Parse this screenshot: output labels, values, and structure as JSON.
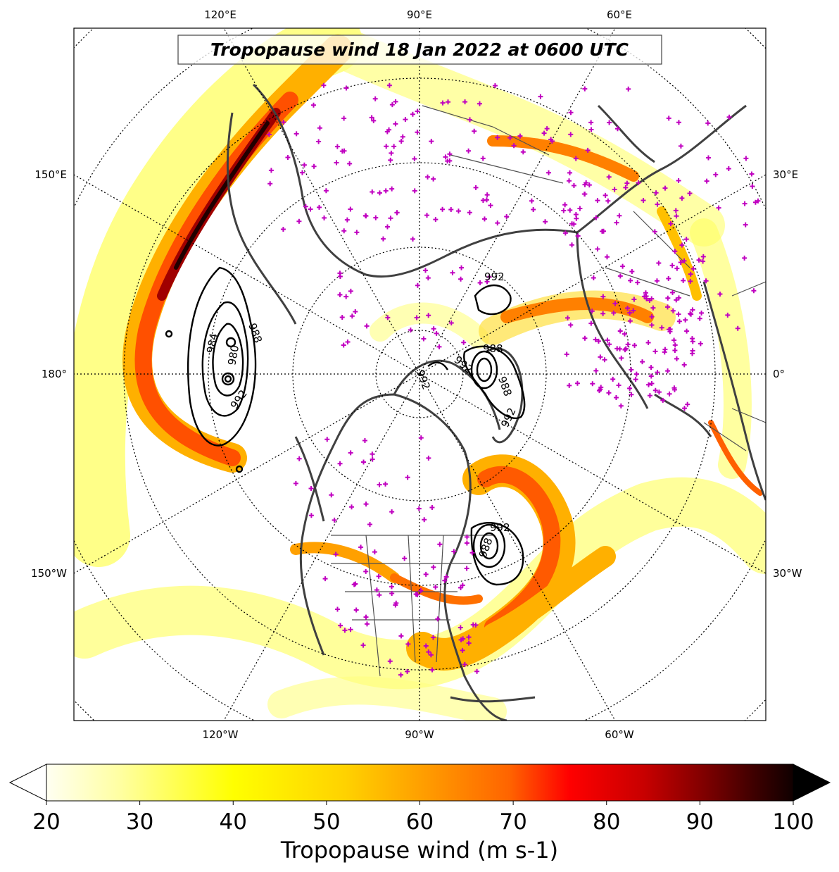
{
  "title": "Tropopause wind 18 Jan 2022 at 0600 UTC",
  "colorbar": {
    "label": "Tropopause wind (m s-1)",
    "ticks": [
      "20",
      "30",
      "40",
      "50",
      "60",
      "70",
      "80",
      "90",
      "100"
    ],
    "min": 20,
    "max": 100,
    "extend": "both",
    "colors": [
      "#fffff2",
      "#ffffa0",
      "#ffff00",
      "#ffd200",
      "#ff9600",
      "#ff6400",
      "#ff0000",
      "#c80000",
      "#800000",
      "#3c0000",
      "#100000"
    ]
  },
  "longitude_labels": {
    "top": [
      "120°E",
      "90°E",
      "60°E"
    ],
    "left": [
      "150°E",
      "180°",
      "150°W"
    ],
    "right": [
      "30°E",
      "0°",
      "30°W"
    ],
    "bottom": [
      "120°W",
      "90°W",
      "60°W"
    ]
  },
  "contour_labels": [
    "992",
    "984",
    "988",
    "980",
    "992",
    "992",
    "992",
    "988",
    "988",
    "992",
    "992",
    "988"
  ],
  "colors": {
    "coastline": "#404040",
    "border": "#404040",
    "station_marker": "#c000c0",
    "contour": "#000000",
    "graticule": "#000000"
  }
}
